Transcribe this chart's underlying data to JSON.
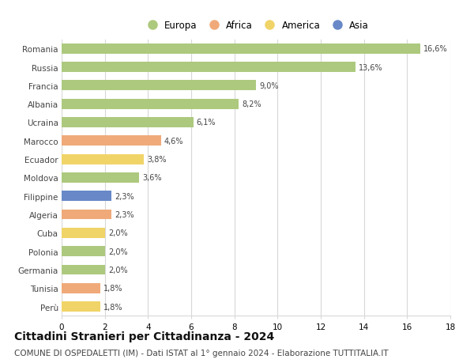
{
  "countries": [
    "Romania",
    "Russia",
    "Francia",
    "Albania",
    "Ucraina",
    "Marocco",
    "Ecuador",
    "Moldova",
    "Filippine",
    "Algeria",
    "Cuba",
    "Polonia",
    "Germania",
    "Tunisia",
    "Perù"
  ],
  "values": [
    16.6,
    13.6,
    9.0,
    8.2,
    6.1,
    4.6,
    3.8,
    3.6,
    2.3,
    2.3,
    2.0,
    2.0,
    2.0,
    1.8,
    1.8
  ],
  "labels": [
    "16,6%",
    "13,6%",
    "9,0%",
    "8,2%",
    "6,1%",
    "4,6%",
    "3,8%",
    "3,6%",
    "2,3%",
    "2,3%",
    "2,0%",
    "2,0%",
    "2,0%",
    "1,8%",
    "1,8%"
  ],
  "categories": [
    "Europa",
    "Europa",
    "Europa",
    "Europa",
    "Europa",
    "Africa",
    "America",
    "Europa",
    "Asia",
    "Africa",
    "America",
    "Europa",
    "Europa",
    "Africa",
    "America"
  ],
  "colors": {
    "Europa": "#adc97e",
    "Africa": "#f0aa7a",
    "America": "#f0d468",
    "Asia": "#6888c8"
  },
  "xlim": [
    0,
    18
  ],
  "xticks": [
    0,
    2,
    4,
    6,
    8,
    10,
    12,
    14,
    16,
    18
  ],
  "title": "Cittadini Stranieri per Cittadinanza - 2024",
  "subtitle": "COMUNE DI OSPEDALETTI (IM) - Dati ISTAT al 1° gennaio 2024 - Elaborazione TUTTITALIA.IT",
  "title_fontsize": 10,
  "subtitle_fontsize": 7.5,
  "bar_height": 0.55,
  "background_color": "#ffffff",
  "grid_color": "#d8d8d8",
  "legend_order": [
    "Europa",
    "Africa",
    "America",
    "Asia"
  ]
}
